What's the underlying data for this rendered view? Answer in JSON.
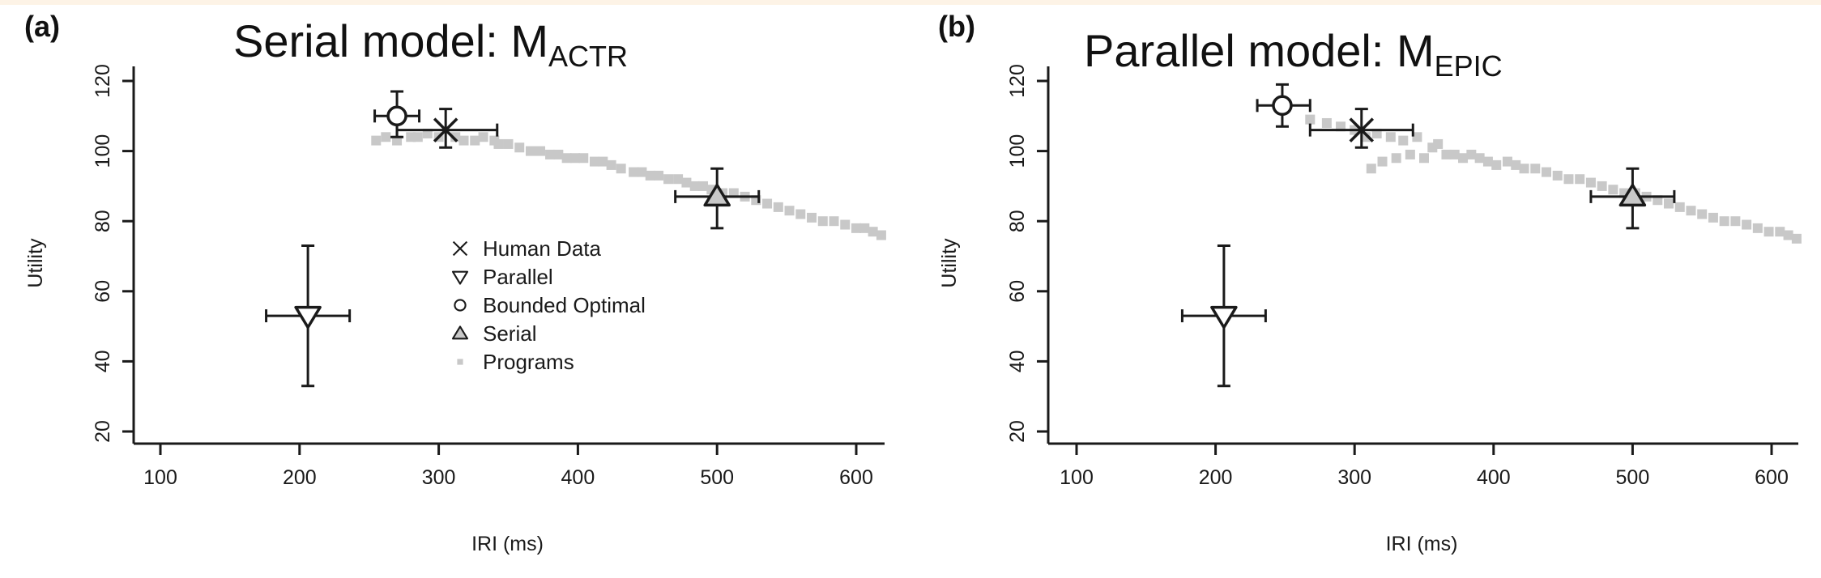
{
  "figure": {
    "background": "#ffffff"
  },
  "chart_data": [
    {
      "type": "scatter",
      "panel_label": "(a)",
      "title": "Serial model: M",
      "title_subscript": "ACTR",
      "xlabel": "IRI (ms)",
      "ylabel": "Utility",
      "xlim": [
        80,
        620
      ],
      "ylim": [
        17,
        121
      ],
      "xticks": [
        100,
        200,
        300,
        400,
        500,
        600
      ],
      "yticks": [
        20,
        40,
        60,
        80,
        100,
        120
      ],
      "legend_position": "center",
      "legend": [
        {
          "label": "Human Data",
          "marker": "x-icon"
        },
        {
          "label": "Parallel",
          "marker": "triangle-down-icon"
        },
        {
          "label": "Bounded Optimal",
          "marker": "circle-icon"
        },
        {
          "label": "Serial",
          "marker": "triangle-up-icon"
        },
        {
          "label": "Programs",
          "marker": "square-icon"
        }
      ],
      "points": [
        {
          "series": "Human Data",
          "marker": "x",
          "x": 305,
          "y": 106,
          "xerr": [
            270,
            342
          ],
          "yerr": [
            101,
            112
          ]
        },
        {
          "series": "Parallel",
          "marker": "triangle-down",
          "x": 206,
          "y": 53,
          "xerr": [
            176,
            236
          ],
          "yerr": [
            33,
            73
          ]
        },
        {
          "series": "Bounded Optimal",
          "marker": "circle",
          "x": 270,
          "y": 110,
          "xerr": [
            254,
            286
          ],
          "yerr": [
            104,
            117
          ]
        },
        {
          "series": "Serial",
          "marker": "triangle-up",
          "x": 500,
          "y": 87,
          "xerr": [
            470,
            530
          ],
          "yerr": [
            78,
            95
          ]
        }
      ],
      "programs": [
        [
          255,
          103
        ],
        [
          262,
          104
        ],
        [
          270,
          103
        ],
        [
          280,
          104
        ],
        [
          285,
          104
        ],
        [
          292,
          105
        ],
        [
          300,
          104
        ],
        [
          312,
          104
        ],
        [
          318,
          103
        ],
        [
          326,
          103
        ],
        [
          332,
          104
        ],
        [
          340,
          103
        ],
        [
          343,
          102
        ],
        [
          350,
          102
        ],
        [
          358,
          101
        ],
        [
          366,
          100
        ],
        [
          373,
          100
        ],
        [
          380,
          99
        ],
        [
          386,
          99
        ],
        [
          392,
          98
        ],
        [
          398,
          98
        ],
        [
          404,
          98
        ],
        [
          412,
          97
        ],
        [
          418,
          97
        ],
        [
          424,
          96
        ],
        [
          431,
          95
        ],
        [
          440,
          94
        ],
        [
          446,
          94
        ],
        [
          452,
          93
        ],
        [
          458,
          93
        ],
        [
          465,
          92
        ],
        [
          472,
          92
        ],
        [
          478,
          91
        ],
        [
          484,
          90
        ],
        [
          490,
          90
        ],
        [
          496,
          89
        ],
        [
          504,
          88
        ],
        [
          512,
          88
        ],
        [
          520,
          87
        ],
        [
          528,
          86
        ],
        [
          536,
          85
        ],
        [
          544,
          84
        ],
        [
          552,
          83
        ],
        [
          560,
          82
        ],
        [
          568,
          81
        ],
        [
          576,
          80
        ],
        [
          584,
          80
        ],
        [
          592,
          79
        ],
        [
          600,
          78
        ],
        [
          606,
          78
        ],
        [
          612,
          77
        ],
        [
          618,
          76
        ]
      ],
      "colors": {
        "programs": "#c8c8c8",
        "markers": "#1a1a1a",
        "marker_fill": "#ffffff",
        "serial_fill": "#c8c8c8"
      }
    },
    {
      "type": "scatter",
      "panel_label": "(b)",
      "title": "Parallel model: M",
      "title_subscript": "EPIC",
      "xlabel": "IRI (ms)",
      "ylabel": "Utility",
      "xlim": [
        80,
        620
      ],
      "ylim": [
        17,
        121
      ],
      "xticks": [
        100,
        200,
        300,
        400,
        500,
        600
      ],
      "yticks": [
        20,
        40,
        60,
        80,
        100,
        120
      ],
      "points": [
        {
          "series": "Human Data",
          "marker": "x",
          "x": 305,
          "y": 106,
          "xerr": [
            268,
            342
          ],
          "yerr": [
            101,
            112
          ]
        },
        {
          "series": "Parallel",
          "marker": "triangle-down",
          "x": 206,
          "y": 53,
          "xerr": [
            176,
            236
          ],
          "yerr": [
            33,
            73
          ]
        },
        {
          "series": "Bounded Optimal",
          "marker": "circle",
          "x": 248,
          "y": 113,
          "xerr": [
            230,
            268
          ],
          "yerr": [
            107,
            119
          ]
        },
        {
          "series": "Serial",
          "marker": "triangle-up",
          "x": 500,
          "y": 87,
          "xerr": [
            470,
            530
          ],
          "yerr": [
            78,
            95
          ]
        }
      ],
      "programs": [
        [
          268,
          109
        ],
        [
          280,
          108
        ],
        [
          290,
          107
        ],
        [
          300,
          106
        ],
        [
          308,
          104
        ],
        [
          312,
          95
        ],
        [
          316,
          105
        ],
        [
          320,
          97
        ],
        [
          326,
          104
        ],
        [
          330,
          98
        ],
        [
          335,
          103
        ],
        [
          340,
          99
        ],
        [
          345,
          104
        ],
        [
          350,
          98
        ],
        [
          356,
          101
        ],
        [
          360,
          102
        ],
        [
          366,
          99
        ],
        [
          372,
          99
        ],
        [
          378,
          98
        ],
        [
          384,
          99
        ],
        [
          390,
          98
        ],
        [
          396,
          97
        ],
        [
          402,
          96
        ],
        [
          410,
          97
        ],
        [
          416,
          96
        ],
        [
          422,
          95
        ],
        [
          430,
          95
        ],
        [
          438,
          94
        ],
        [
          446,
          93
        ],
        [
          454,
          92
        ],
        [
          462,
          92
        ],
        [
          470,
          91
        ],
        [
          478,
          90
        ],
        [
          486,
          89
        ],
        [
          494,
          88
        ],
        [
          502,
          88
        ],
        [
          510,
          87
        ],
        [
          518,
          86
        ],
        [
          526,
          85
        ],
        [
          534,
          84
        ],
        [
          542,
          83
        ],
        [
          550,
          82
        ],
        [
          558,
          81
        ],
        [
          566,
          80
        ],
        [
          574,
          80
        ],
        [
          582,
          79
        ],
        [
          590,
          78
        ],
        [
          598,
          77
        ],
        [
          606,
          77
        ],
        [
          612,
          76
        ],
        [
          618,
          75
        ]
      ],
      "colors": {
        "programs": "#c8c8c8",
        "markers": "#1a1a1a",
        "marker_fill": "#ffffff",
        "serial_fill": "#c8c8c8"
      }
    }
  ]
}
